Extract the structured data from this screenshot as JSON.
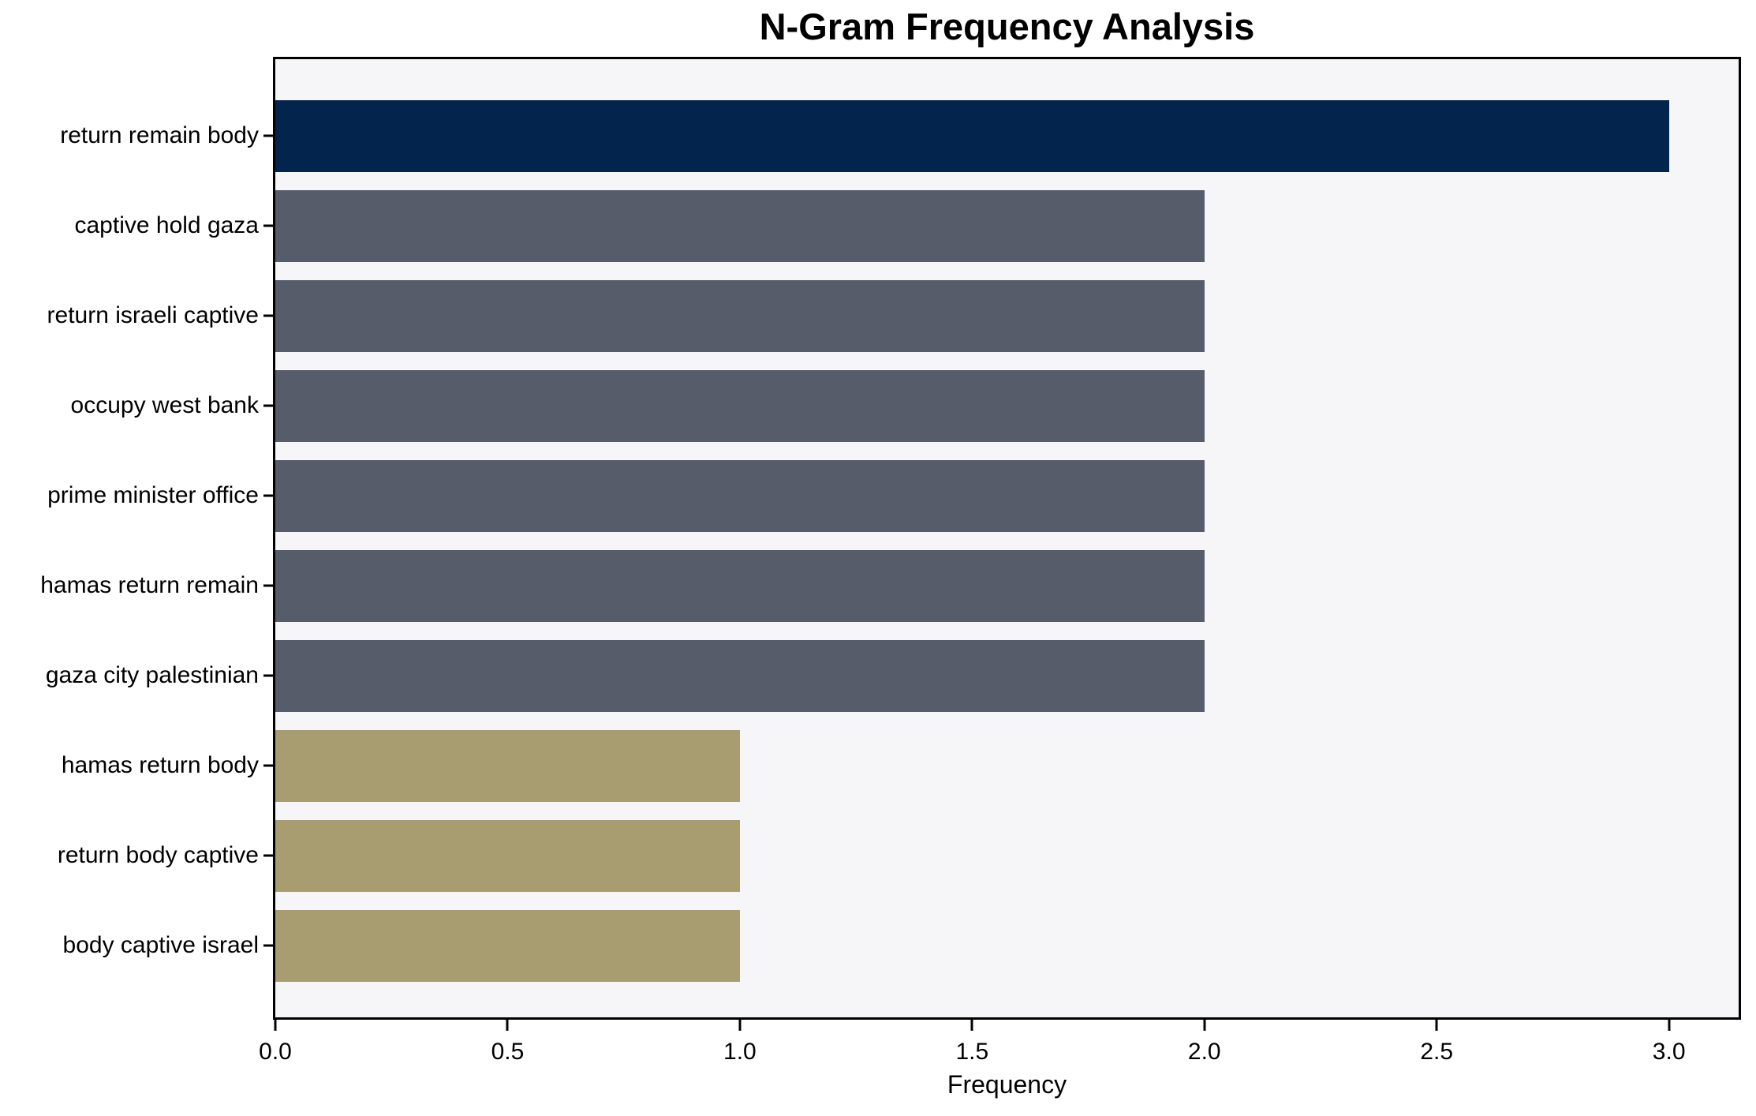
{
  "chart_data": {
    "type": "bar",
    "orientation": "horizontal",
    "title": "N-Gram Frequency Analysis",
    "xlabel": "Frequency",
    "ylabel": "",
    "categories": [
      "return remain body",
      "captive hold gaza",
      "return israeli captive",
      "occupy west bank",
      "prime minister office",
      "hamas return remain",
      "gaza city palestinian",
      "hamas return body",
      "return body captive",
      "body captive israel"
    ],
    "values": [
      3,
      2,
      2,
      2,
      2,
      2,
      2,
      1,
      1,
      1
    ],
    "bar_colors": [
      "#02244D",
      "#575C6B",
      "#575C6B",
      "#575C6B",
      "#575C6B",
      "#575C6B",
      "#575C6B",
      "#A89C71",
      "#A89C71",
      "#A89C71"
    ],
    "xlim": [
      0,
      3.15
    ],
    "xticks": [
      {
        "value": 0.0,
        "label": "0.0"
      },
      {
        "value": 0.5,
        "label": "0.5"
      },
      {
        "value": 1.0,
        "label": "1.0"
      },
      {
        "value": 1.5,
        "label": "1.5"
      },
      {
        "value": 2.0,
        "label": "2.0"
      },
      {
        "value": 2.5,
        "label": "2.5"
      },
      {
        "value": 3.0,
        "label": "3.0"
      }
    ],
    "grid": false,
    "legend": "none",
    "colors": {
      "plot_background": "#F6F6F8",
      "figure_background": "#FFFFFF",
      "spine": "#000000",
      "text": "#000000"
    }
  }
}
